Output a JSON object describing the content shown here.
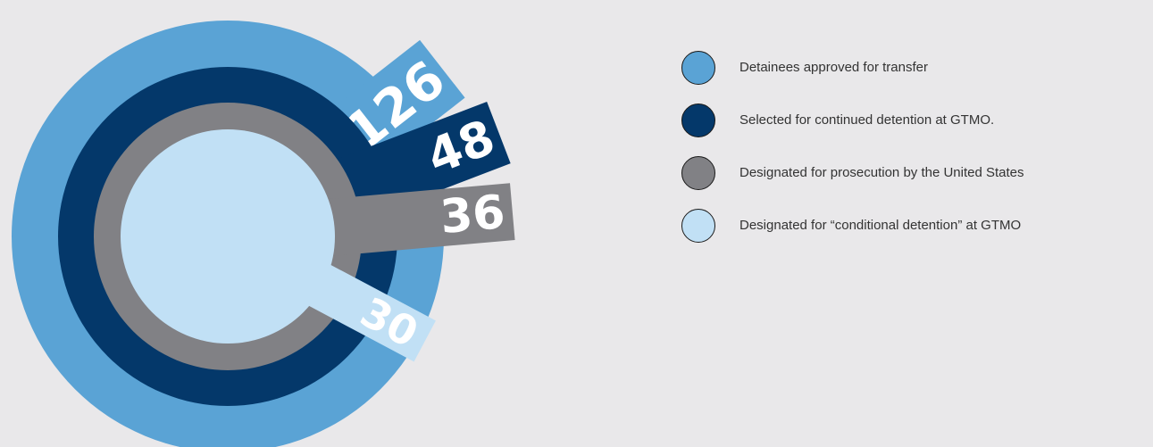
{
  "chart_data": {
    "type": "radial-bar",
    "title": "",
    "series": [
      {
        "value": 126,
        "label": "126",
        "legend": "Detainees approved for transfer",
        "color": "#5aa3d5"
      },
      {
        "value": 48,
        "label": "48",
        "legend": "Selected for continued detention at GTMO.",
        "color": "#04386a"
      },
      {
        "value": 36,
        "label": "36",
        "legend": "Designated for prosecution by the United States",
        "color": "#818185"
      },
      {
        "value": 30,
        "label": "30",
        "legend": "Designated for “conditional detention” at GTMO",
        "color": "#c1e0f5"
      }
    ],
    "legend_position": "right"
  }
}
